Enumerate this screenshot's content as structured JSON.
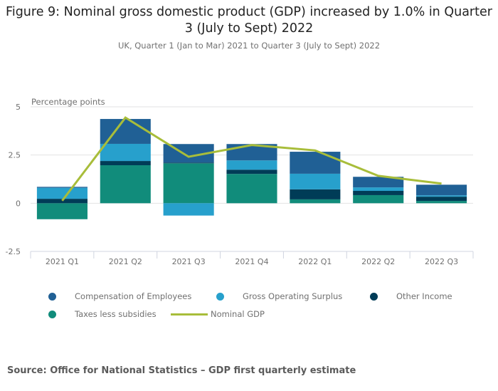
{
  "title": "Figure 9: Nominal gross domestic product (GDP) increased by 1.0% in Quarter 3 (July to Sept) 2022",
  "subtitle": "UK, Quarter 1 (Jan to Mar) 2021 to Quarter 3 (July to Sept) 2022",
  "source": "Source: Office for National Statistics – GDP first quarterly estimate",
  "chart_data": {
    "type": "bar",
    "stacked": true,
    "title": "Figure 9: Nominal gross domestic product (GDP) increased by 1.0% in Quarter 3 (July to Sept) 2022",
    "subtitle": "UK, Quarter 1 (Jan to Mar) 2021 to Quarter 3 (July to Sept) 2022",
    "xlabel": "",
    "ylabel": "Percentage points",
    "ylim": [
      -2.5,
      5
    ],
    "yticks": [
      5,
      2.5,
      0,
      -2.5
    ],
    "ytick_labels": [
      "5",
      "2.5",
      "0",
      "-2.5"
    ],
    "grid": true,
    "legend_position": "bottom",
    "categories": [
      "2021 Q1",
      "2021 Q2",
      "2021 Q3",
      "2021 Q4",
      "2022 Q1",
      "2022 Q2",
      "2022 Q3"
    ],
    "series": [
      {
        "name": "Compensation of Employees",
        "kind": "bar",
        "color": "#206095",
        "values": [
          0.05,
          1.29,
          0.96,
          0.85,
          1.14,
          0.55,
          0.55
        ]
      },
      {
        "name": "Gross Operating Surplus",
        "kind": "bar",
        "color": "#27a0cc",
        "values": [
          0.57,
          0.89,
          -0.64,
          0.48,
          0.81,
          0.18,
          0.07
        ]
      },
      {
        "name": "Other Income",
        "kind": "bar",
        "color": "#003c57",
        "values": [
          0.23,
          0.22,
          0.04,
          0.22,
          0.52,
          0.22,
          0.22
        ]
      },
      {
        "name": "Taxes less subsidies",
        "kind": "bar",
        "color": "#118c7b",
        "values": [
          -0.83,
          1.97,
          2.07,
          1.52,
          0.2,
          0.42,
          0.12
        ]
      },
      {
        "name": "Nominal GDP",
        "kind": "line",
        "color": "#a8bd3a",
        "values": [
          0.13,
          4.44,
          2.41,
          3.02,
          2.74,
          1.42,
          1.02
        ]
      }
    ]
  }
}
